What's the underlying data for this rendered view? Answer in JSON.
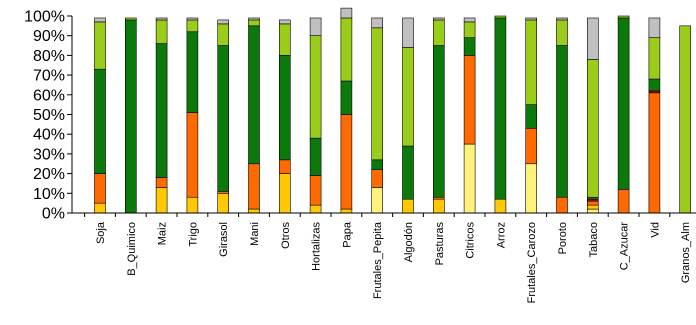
{
  "chart_data": {
    "type": "bar",
    "stacked": true,
    "normalized": true,
    "title": "",
    "xlabel": "",
    "ylabel": "",
    "ylim": [
      0,
      100
    ],
    "legend": "none",
    "grid": false,
    "yticks": [
      "0%",
      "10%",
      "20%",
      "30%",
      "40%",
      "50%",
      "60%",
      "70%",
      "80%",
      "90%",
      "100%"
    ],
    "categories": [
      "Soja",
      "B_Quimico",
      "Maiz",
      "Trigo",
      "Girasol",
      "Mani",
      "Otros",
      "Hortalizas",
      "Papa",
      "Frutales_Pepita",
      "Algodón",
      "Pasturas",
      "Citricos",
      "Arroz",
      "Frutales_Carozo",
      "Poroto",
      "Tabaco",
      "C_Azucar",
      "Vid",
      "Granos_Alm"
    ],
    "series": [
      {
        "color": "#fff27a",
        "values": [
          0,
          0,
          0,
          0,
          0,
          0,
          0,
          0,
          0,
          13,
          0,
          0,
          35,
          0,
          25,
          0,
          2,
          0,
          0,
          0
        ]
      },
      {
        "color": "#ffc800",
        "values": [
          5,
          0,
          13,
          8,
          10,
          2,
          20,
          4,
          2,
          0,
          7,
          7,
          0,
          7,
          0,
          0,
          2,
          0,
          0,
          0
        ]
      },
      {
        "color": "#ff6a00",
        "values": [
          15,
          0,
          5,
          43,
          1,
          23,
          7,
          15,
          48,
          9,
          0,
          1,
          45,
          0,
          18,
          8,
          2,
          12,
          61,
          0
        ]
      },
      {
        "color": "#b30000",
        "values": [
          0,
          0,
          0,
          0,
          0,
          0,
          0,
          0,
          0,
          0,
          0,
          0,
          0,
          0,
          0,
          0,
          1,
          0,
          1,
          0
        ]
      },
      {
        "color": "#0b7a0b",
        "values": [
          53,
          98,
          68,
          41,
          74,
          70,
          53,
          19,
          17,
          5,
          27,
          77,
          9,
          92,
          12,
          77,
          1,
          87,
          6,
          0
        ]
      },
      {
        "color": "#9acd19",
        "values": [
          24,
          1,
          12,
          6,
          11,
          3,
          16,
          52,
          32,
          67,
          50,
          13,
          8,
          1,
          43,
          13,
          70,
          1,
          21,
          95
        ]
      },
      {
        "color": "#c0c0c0",
        "values": [
          2,
          0,
          1,
          1,
          2,
          1,
          2,
          9,
          5,
          5,
          15,
          1,
          2,
          0,
          1,
          1,
          21,
          0,
          10,
          0
        ]
      }
    ]
  }
}
